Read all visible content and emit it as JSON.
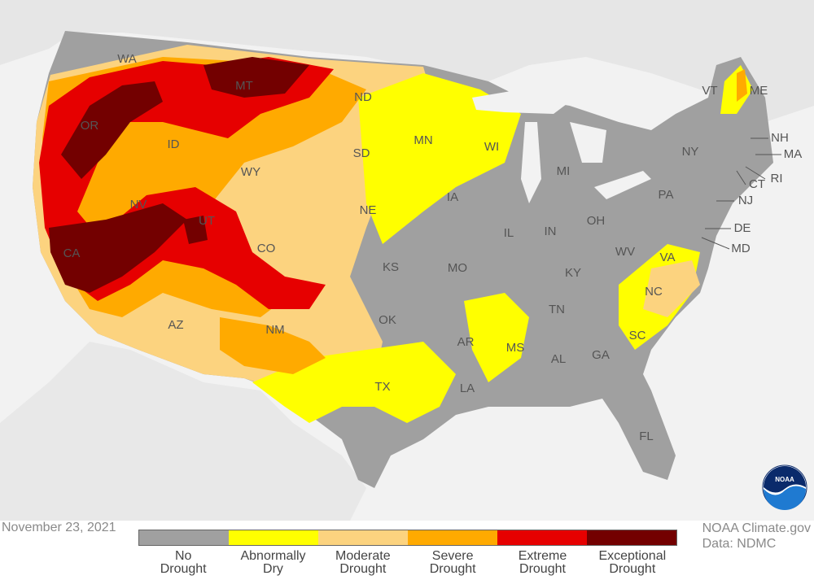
{
  "date": "November 23, 2021",
  "credit": {
    "line1": "NOAA Climate.gov",
    "line2": "Data: NDMC"
  },
  "legend": [
    {
      "line1": "No",
      "line2": "Drought",
      "color": "#a0a0a0"
    },
    {
      "line1": "Abnormally",
      "line2": "Dry",
      "color": "#ffff00"
    },
    {
      "line1": "Moderate",
      "line2": "Drought",
      "color": "#fcd37f"
    },
    {
      "line1": "Severe",
      "line2": "Drought",
      "color": "#ffaa00"
    },
    {
      "line1": "Extreme",
      "line2": "Drought",
      "color": "#e60000"
    },
    {
      "line1": "Exceptional",
      "line2": "Drought",
      "color": "#730000"
    }
  ],
  "states": {
    "WA": "WA",
    "OR": "OR",
    "CA": "CA",
    "ID": "ID",
    "NV": "NV",
    "MT": "MT",
    "WY": "WY",
    "UT": "UT",
    "AZ": "AZ",
    "CO": "CO",
    "NM": "NM",
    "ND": "ND",
    "SD": "SD",
    "NE": "NE",
    "KS": "KS",
    "OK": "OK",
    "TX": "TX",
    "MN": "MN",
    "IA": "IA",
    "MO": "MO",
    "AR": "AR",
    "LA": "LA",
    "WI": "WI",
    "IL": "IL",
    "MI": "MI",
    "IN": "IN",
    "OH": "OH",
    "KY": "KY",
    "TN": "TN",
    "MS": "MS",
    "AL": "AL",
    "GA": "GA",
    "FL": "FL",
    "SC": "SC",
    "NC": "NC",
    "VA": "VA",
    "WV": "WV",
    "PA": "PA",
    "NY": "NY",
    "VT": "VT",
    "ME": "ME",
    "NH": "NH",
    "MA": "MA",
    "RI": "RI",
    "CT": "CT",
    "NJ": "NJ",
    "DE": "DE",
    "MD": "MD"
  },
  "logo_text": "NOAA"
}
